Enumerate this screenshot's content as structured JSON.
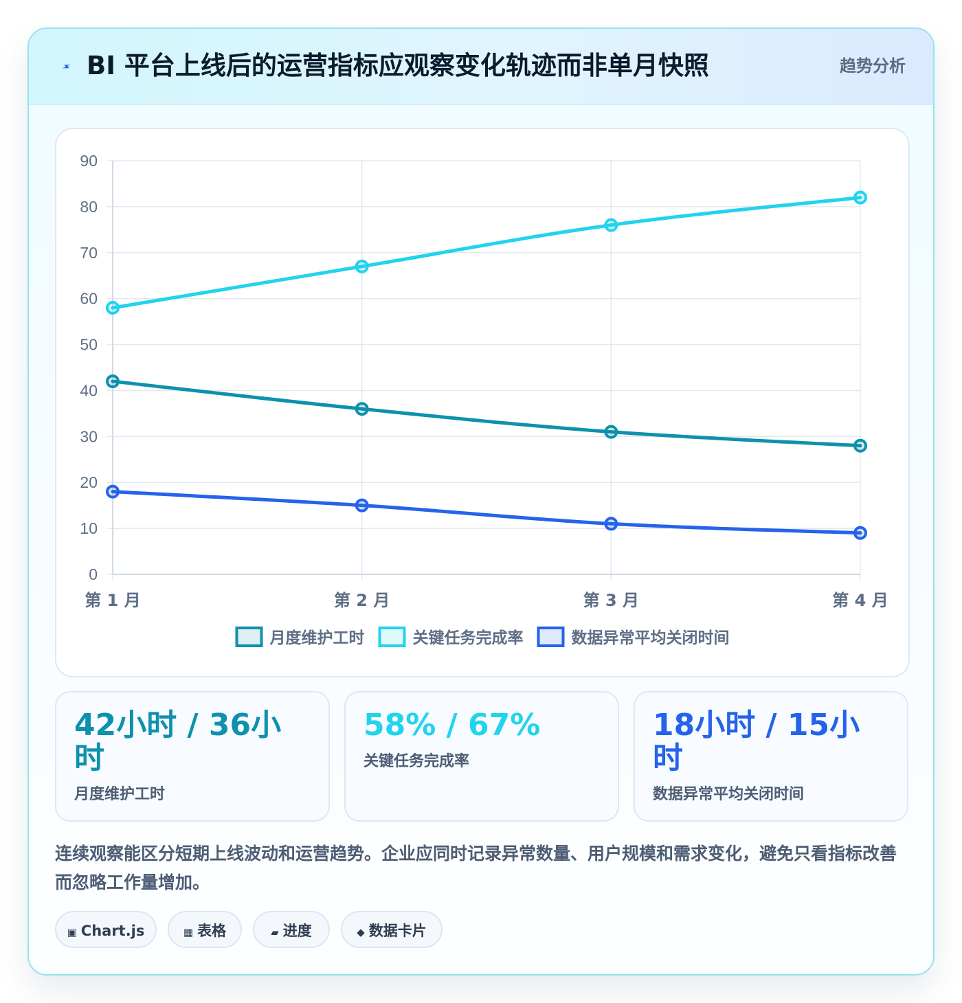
{
  "header": {
    "icon": "lightning-icon",
    "title": "BI 平台上线后的运营指标应观察变化轨迹而非单月快照",
    "tag": "趋势分析"
  },
  "colors": {
    "maintenance": "#0e91ad",
    "completion": "#22d3ee",
    "anomaly": "#2563eb"
  },
  "chart_data": {
    "type": "line",
    "categories": [
      "第 1 月",
      "第 2 月",
      "第 3 月",
      "第 4 月"
    ],
    "series": [
      {
        "name": "月度维护工时",
        "values": [
          42,
          36,
          31,
          28
        ],
        "color": "#0e91ad"
      },
      {
        "name": "关键任务完成率",
        "values": [
          58,
          67,
          76,
          82
        ],
        "color": "#22d3ee"
      },
      {
        "name": "数据异常平均关闭时间",
        "values": [
          18,
          15,
          11,
          9
        ],
        "color": "#2563eb"
      }
    ],
    "ylim": [
      0,
      90
    ],
    "yticks": [
      0,
      10,
      20,
      30,
      40,
      50,
      60,
      70,
      80,
      90
    ],
    "grid": true,
    "legend_position": "bottom"
  },
  "kpis": [
    {
      "value": "42小时 / 36小时",
      "label": "月度维护工时",
      "color": "#0e91ad"
    },
    {
      "value": "58% / 67%",
      "label": "关键任务完成率",
      "color": "#22d3ee"
    },
    {
      "value": "18小时 / 15小时",
      "label": "数据异常平均关闭时间",
      "color": "#2563eb"
    }
  ],
  "description": "连续观察能区分短期上线波动和运营趋势。企业应同时记录异常数量、用户规模和需求变化，避免只看指标改善而忽略工作量增加。",
  "chips": [
    {
      "icon": "▣",
      "label": "Chart.js"
    },
    {
      "icon": "▦",
      "label": "表格"
    },
    {
      "icon": "▰",
      "label": "进度"
    },
    {
      "icon": "◆",
      "label": "数据卡片"
    }
  ]
}
